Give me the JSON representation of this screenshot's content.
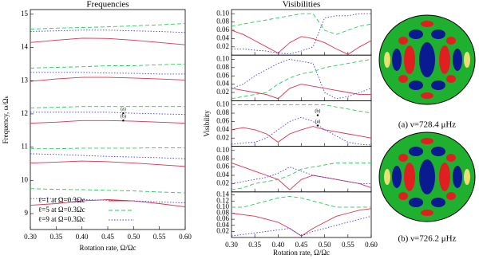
{
  "chart_data": [
    {
      "type": "line",
      "title": "Frequencies",
      "xlabel": "Rotation rate, Ω/Ωc",
      "ylabel": "Frequency, ω/Ωₖ",
      "x": [
        0.3,
        0.35,
        0.4,
        0.45,
        0.5,
        0.55,
        0.6
      ],
      "xlim": [
        0.3,
        0.6
      ],
      "ylim": [
        8.52,
        15.14
      ],
      "xticks": [
        {
          "value": 0.3,
          "label": "0.30"
        },
        0.35,
        {
          "value": 0.4,
          "label": "0.40"
        },
        0.45,
        {
          "value": 0.5,
          "label": "0.50"
        },
        0.55,
        {
          "value": 0.6,
          "label": "0.60"
        }
      ],
      "yticks": [
        9,
        10,
        11,
        12,
        13,
        14,
        15
      ],
      "show_xticklabels": true,
      "legend": "lower left",
      "series": [
        {
          "name": "ℓ=1 at Ω=0.3Ωc",
          "color": "#e0304e",
          "dash": "solid",
          "values": [
            14.15,
            14.22,
            14.28,
            14.27,
            14.22,
            14.15,
            14.08
          ]
        },
        {
          "color": "#e0304e",
          "dash": "solid",
          "values": [
            12.98,
            13.05,
            13.1,
            13.1,
            13.08,
            13.05,
            13.02
          ]
        },
        {
          "color": "#e0304e",
          "dash": "solid",
          "values": [
            11.72,
            11.75,
            11.8,
            11.8,
            11.78,
            11.75,
            11.72
          ]
        },
        {
          "color": "#e0304e",
          "dash": "solid",
          "values": [
            10.52,
            10.55,
            10.58,
            10.56,
            10.52,
            10.47,
            10.42
          ]
        },
        {
          "color": "#e0304e",
          "dash": "solid",
          "values": [
            9.25,
            9.3,
            9.38,
            9.42,
            9.38,
            9.3,
            9.2
          ]
        },
        {
          "name": "ℓ=5 at Ω=0.3Ωc",
          "color": "#2ec760",
          "dash": "dashed",
          "values": [
            14.55,
            14.58,
            14.6,
            14.62,
            14.65,
            14.68,
            14.72
          ]
        },
        {
          "color": "#2ec760",
          "dash": "dashed",
          "values": [
            13.38,
            13.4,
            13.42,
            13.45,
            13.45,
            13.48,
            13.5
          ]
        },
        {
          "color": "#2ec760",
          "dash": "dashed",
          "values": [
            12.18,
            12.2,
            12.22,
            12.22,
            12.22,
            12.22,
            12.22
          ]
        },
        {
          "color": "#2ec760",
          "dash": "dashed",
          "values": [
            10.95,
            10.95,
            10.97,
            10.97,
            10.97,
            10.98,
            10.98
          ]
        },
        {
          "color": "#2ec760",
          "dash": "dashed",
          "values": [
            9.75,
            9.73,
            9.72,
            9.7,
            9.68,
            9.65,
            9.62
          ]
        },
        {
          "name": "ℓ=9 at Ω=0.3Ωc",
          "color": "#4040dd",
          "dash": "dotted",
          "values": [
            14.48,
            14.5,
            14.52,
            14.52,
            14.5,
            14.48,
            14.45
          ]
        },
        {
          "color": "#4040dd",
          "dash": "dotted",
          "values": [
            13.25,
            13.25,
            13.25,
            13.23,
            13.22,
            13.2,
            13.2
          ]
        },
        {
          "color": "#4040dd",
          "dash": "dotted",
          "values": [
            12.05,
            12.05,
            12.05,
            12.05,
            12.02,
            12.0,
            11.98
          ]
        },
        {
          "color": "#4040dd",
          "dash": "dotted",
          "values": [
            10.8,
            10.78,
            10.75,
            10.72,
            10.7,
            10.68,
            10.65
          ]
        },
        {
          "color": "#4040dd",
          "dash": "dotted",
          "values": [
            9.45,
            9.45,
            9.42,
            9.4,
            9.38,
            9.35,
            9.32
          ]
        }
      ],
      "annotations": [
        {
          "text": "(a)",
          "x": 0.48,
          "y": 12.02
        },
        {
          "text": "(b)",
          "x": 0.48,
          "y": 11.8
        }
      ]
    },
    {
      "type": "line",
      "title": "Visibilities",
      "x": [
        0.3,
        0.325,
        0.35,
        0.375,
        0.4,
        0.425,
        0.45,
        0.475,
        0.5,
        0.525,
        0.55,
        0.575,
        0.6
      ],
      "xlim": [
        0.3,
        0.6
      ],
      "ylim": [
        0,
        0.11
      ],
      "xticks": [
        0.3,
        0.35,
        0.4,
        0.45,
        0.5,
        0.55,
        0.6
      ],
      "yticks": [
        0.02,
        0.04,
        0.06,
        0.08,
        {
          "value": 0.1,
          "label": "0.10"
        }
      ],
      "show_xticklabels": false,
      "series": [
        {
          "color": "#e0304e",
          "dash": "solid",
          "values": [
            0.06,
            0.05,
            0.035,
            0.02,
            0.005,
            0.03,
            0.045,
            0.04,
            0.03,
            0.015,
            0.002,
            0.02,
            0.035
          ]
        },
        {
          "color": "#2ec760",
          "dash": "dashed",
          "values": [
            0.07,
            0.075,
            0.08,
            0.085,
            0.09,
            0.095,
            0.1,
            0.1,
            0.06,
            0.05,
            0.06,
            0.07,
            0.075
          ]
        },
        {
          "color": "#4040dd",
          "dash": "dotted",
          "values": [
            0.015,
            0.015,
            0.012,
            0.01,
            0.005,
            0.003,
            0.01,
            0.02,
            0.09,
            0.095,
            0.095,
            0.1,
            0.1
          ]
        }
      ]
    },
    {
      "type": "line",
      "x": [
        0.3,
        0.325,
        0.35,
        0.375,
        0.4,
        0.425,
        0.45,
        0.475,
        0.5,
        0.525,
        0.55,
        0.575,
        0.6
      ],
      "xlim": [
        0.3,
        0.6
      ],
      "ylim": [
        0,
        0.11
      ],
      "xticks": [
        0.3,
        0.35,
        0.4,
        0.45,
        0.5,
        0.55,
        0.6
      ],
      "yticks": [
        0.02,
        0.04,
        0.06,
        0.08,
        {
          "value": 0.1,
          "label": "0.10"
        }
      ],
      "show_xticklabels": false,
      "series": [
        {
          "color": "#e0304e",
          "dash": "solid",
          "values": [
            0.03,
            0.025,
            0.02,
            0.015,
            0.005,
            0.03,
            0.04,
            0.035,
            0.03,
            0.025,
            0.02,
            0.015,
            0.015
          ]
        },
        {
          "color": "#2ec760",
          "dash": "dashed",
          "values": [
            0.005,
            0.01,
            0.015,
            0.02,
            0.04,
            0.055,
            0.065,
            0.07,
            0.08,
            0.085,
            0.09,
            0.095,
            0.1
          ]
        },
        {
          "color": "#4040dd",
          "dash": "dotted",
          "values": [
            0.03,
            0.04,
            0.06,
            0.075,
            0.09,
            0.1,
            0.095,
            0.09,
            0.02,
            0.005,
            0.01,
            0.02,
            0.03
          ]
        }
      ]
    },
    {
      "type": "line",
      "ylabel": "Visibility",
      "x": [
        0.3,
        0.325,
        0.35,
        0.375,
        0.4,
        0.425,
        0.45,
        0.475,
        0.5,
        0.525,
        0.55,
        0.575,
        0.6
      ],
      "xlim": [
        0.3,
        0.6
      ],
      "ylim": [
        0,
        0.11
      ],
      "xticks": [
        0.3,
        0.35,
        0.4,
        0.45,
        0.5,
        0.55,
        0.6
      ],
      "yticks": [
        0.02,
        0.04,
        0.06,
        0.08,
        {
          "value": 0.1,
          "label": "0.10"
        }
      ],
      "show_xticklabels": false,
      "series": [
        {
          "color": "#e0304e",
          "dash": "solid",
          "values": [
            0.04,
            0.045,
            0.04,
            0.03,
            0.01,
            0.03,
            0.04,
            0.048,
            0.04,
            0.035,
            0.03,
            0.025,
            0.02
          ]
        },
        {
          "color": "#2ec760",
          "dash": "dashed",
          "values": [
            0.1,
            0.1,
            0.1,
            0.1,
            0.1,
            0.1,
            0.1,
            0.1,
            0.1,
            0.095,
            0.09,
            0.085,
            0.08
          ]
        },
        {
          "color": "#4040dd",
          "dash": "dotted",
          "values": [
            0.005,
            0.008,
            0.01,
            0.02,
            0.04,
            0.06,
            0.07,
            0.06,
            0.04,
            0.025,
            0.01,
            0.005,
            0.003
          ]
        }
      ],
      "annotations": [
        {
          "text": "(b)",
          "x": 0.485,
          "y": 0.075
        },
        {
          "text": "(a)",
          "x": 0.485,
          "y": 0.05
        }
      ]
    },
    {
      "type": "line",
      "x": [
        0.3,
        0.325,
        0.35,
        0.375,
        0.4,
        0.425,
        0.45,
        0.475,
        0.5,
        0.525,
        0.55,
        0.575,
        0.6
      ],
      "xlim": [
        0.3,
        0.6
      ],
      "ylim": [
        0,
        0.11
      ],
      "xticks": [
        0.3,
        0.35,
        0.4,
        0.45,
        0.5,
        0.55,
        0.6
      ],
      "yticks": [
        0.02,
        0.04,
        0.06,
        0.08,
        {
          "value": 0.1,
          "label": "0.10"
        }
      ],
      "show_xticklabels": false,
      "series": [
        {
          "color": "#e0304e",
          "dash": "solid",
          "values": [
            0.07,
            0.06,
            0.05,
            0.04,
            0.03,
            0.005,
            0.03,
            0.04,
            0.035,
            0.03,
            0.025,
            0.02,
            0.01
          ]
        },
        {
          "color": "#2ec760",
          "dash": "dashed",
          "values": [
            0.005,
            0.01,
            0.02,
            0.025,
            0.03,
            0.04,
            0.055,
            0.06,
            0.065,
            0.07,
            0.07,
            0.07,
            0.07
          ]
        },
        {
          "color": "#4040dd",
          "dash": "dotted",
          "values": [
            0.02,
            0.025,
            0.03,
            0.035,
            0.045,
            0.06,
            0.05,
            0.04,
            0.035,
            0.03,
            0.025,
            0.02,
            0.02
          ]
        }
      ]
    },
    {
      "type": "line",
      "xlabel": "Rotation rate, Ω/Ωc",
      "x": [
        0.3,
        0.325,
        0.35,
        0.375,
        0.4,
        0.425,
        0.45,
        0.475,
        0.5,
        0.525,
        0.55,
        0.575,
        0.6
      ],
      "xlim": [
        0.3,
        0.6
      ],
      "ylim": [
        0,
        0.15
      ],
      "xticks": [
        {
          "value": 0.3,
          "label": "0.30"
        },
        0.35,
        {
          "value": 0.4,
          "label": "0.40"
        },
        0.45,
        {
          "value": 0.5,
          "label": "0.50"
        },
        0.55,
        {
          "value": 0.6,
          "label": "0.60"
        }
      ],
      "yticks": [
        0.02,
        0.04,
        0.06,
        0.08,
        {
          "value": 0.1,
          "label": "0.10"
        },
        0.12,
        0.14
      ],
      "show_xticklabels": true,
      "series": [
        {
          "color": "#e0304e",
          "dash": "solid",
          "values": [
            0.08,
            0.075,
            0.07,
            0.06,
            0.05,
            0.03,
            0.005,
            0.03,
            0.05,
            0.07,
            0.08,
            0.09,
            0.095
          ]
        },
        {
          "color": "#2ec760",
          "dash": "dashed",
          "values": [
            0.1,
            0.1,
            0.11,
            0.12,
            0.13,
            0.135,
            0.13,
            0.12,
            0.11,
            0.1,
            0.1,
            0.1,
            0.1
          ]
        },
        {
          "color": "#4040dd",
          "dash": "dotted",
          "values": [
            0.005,
            0.01,
            0.015,
            0.02,
            0.025,
            0.03,
            0.005,
            0.02,
            0.03,
            0.04,
            0.05,
            0.06,
            0.07
          ]
        }
      ]
    }
  ],
  "images": [
    {
      "caption": "(a) ν=728.4 μHz"
    },
    {
      "caption": "(b) ν=726.2 μHz"
    }
  ]
}
